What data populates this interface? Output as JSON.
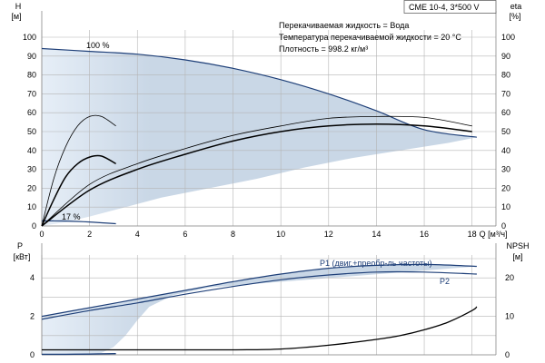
{
  "chart_data": [
    {
      "type": "line",
      "panel": "head-efficiency",
      "title": "CME 10-4, 3*500 V",
      "info_lines": [
        "Перекачиваемая жидкость = Вода",
        "Температура перекачиваемой жидкости = 20 °C",
        "Плотность = 998.2 кг/м³"
      ],
      "y_left_title": "H",
      "y_left_unit": "[м]",
      "y_right_title": "eta",
      "y_right_unit": "[%]",
      "x_axis_label": "Q [м³/ч]",
      "xlim": [
        0,
        19
      ],
      "ylim": [
        0,
        100
      ],
      "y_ticks": [
        0,
        10,
        20,
        30,
        40,
        50,
        60,
        70,
        80,
        90,
        100
      ],
      "x_ticks": [
        0,
        2,
        4,
        6,
        8,
        10,
        12,
        14,
        16,
        18
      ],
      "grid": true,
      "operating_area": {
        "upper": {
          "x": [
            0,
            2,
            4,
            6,
            8,
            10,
            12,
            14,
            16,
            18.2
          ],
          "y": [
            94,
            92.5,
            91,
            88,
            83.5,
            77.5,
            70,
            61,
            51,
            47
          ]
        },
        "lower": {
          "x": [
            0,
            1,
            2,
            3.5,
            5,
            7,
            9,
            11,
            13,
            15,
            17,
            18.2
          ],
          "y": [
            0,
            2,
            5,
            10,
            15,
            20,
            25,
            31,
            36,
            40,
            44,
            47
          ]
        }
      },
      "series": [
        {
          "name": "100 %",
          "kind": "head",
          "x": [
            0,
            2,
            4,
            6,
            8,
            10,
            12,
            14,
            16,
            18.2
          ],
          "y": [
            94,
            92.5,
            91,
            88,
            83.5,
            77.5,
            70,
            61,
            51,
            47
          ]
        },
        {
          "name": "17 %",
          "kind": "head",
          "x": [
            0,
            0.5,
            1,
            1.5,
            2,
            2.5,
            3.1
          ],
          "y": [
            2.7,
            2.7,
            2.6,
            2.4,
            2.1,
            1.7,
            1.2
          ]
        },
        {
          "name": "",
          "kind": "efficiency-pump",
          "x": [
            0,
            2,
            4,
            6,
            8,
            10,
            12,
            14,
            16,
            18
          ],
          "y": [
            0,
            22,
            33,
            41,
            48,
            53,
            57,
            58,
            57.5,
            53
          ]
        },
        {
          "name": "",
          "kind": "efficiency-total",
          "x": [
            0,
            2,
            4,
            6,
            8,
            10,
            12,
            14,
            16,
            18
          ],
          "y": [
            0,
            19,
            30,
            38,
            45,
            50,
            53,
            54,
            53,
            50
          ]
        },
        {
          "name": "",
          "kind": "efficiency-pump-low",
          "x": [
            0,
            0.5,
            1,
            1.5,
            2,
            2.5,
            3.1
          ],
          "y": [
            0,
            25,
            42,
            53,
            58,
            58,
            53
          ]
        },
        {
          "name": "",
          "kind": "efficiency-total-low",
          "x": [
            0,
            0.5,
            1,
            1.5,
            2,
            2.5,
            3.1
          ],
          "y": [
            0,
            14,
            26,
            33,
            36.5,
            37,
            33
          ]
        }
      ]
    },
    {
      "type": "line",
      "panel": "power-npsh",
      "y_left_title": "P",
      "y_left_unit": "[кВт]",
      "y_right_title": "NPSH",
      "y_right_unit": "[м]",
      "xlim": [
        0,
        19
      ],
      "ylim": [
        0,
        5
      ],
      "y_left_ticks": [
        0,
        2,
        4
      ],
      "y_right_ticks": [
        0,
        10,
        20
      ],
      "y_right_lim": [
        0,
        25
      ],
      "grid": true,
      "operating_area": {
        "upper": {
          "x": [
            0,
            2,
            4,
            6,
            8,
            10,
            12,
            14,
            16,
            18.2
          ],
          "y": [
            2.0,
            2.45,
            2.9,
            3.35,
            3.8,
            4.2,
            4.5,
            4.65,
            4.7,
            4.6
          ]
        },
        "lower": {
          "x": [
            0,
            2.0,
            2.5,
            3,
            3.5,
            4,
            4.5,
            5.5,
            7,
            18.2
          ],
          "y": [
            0,
            0,
            0.1,
            0.4,
            1.0,
            1.8,
            2.5,
            3.1,
            3.5,
            4.6
          ]
        }
      },
      "series": [
        {
          "name": "P1 (двиг.+преобр-ль частоты)",
          "kind": "power",
          "x": [
            0,
            2,
            4,
            6,
            8,
            10,
            12,
            14,
            16,
            18.2
          ],
          "y": [
            2.0,
            2.45,
            2.9,
            3.35,
            3.8,
            4.2,
            4.5,
            4.65,
            4.7,
            4.6
          ]
        },
        {
          "name": "P2",
          "kind": "power",
          "x": [
            0,
            2,
            4,
            6,
            8,
            10,
            12,
            14,
            16,
            18.2
          ],
          "y": [
            1.85,
            2.3,
            2.7,
            3.15,
            3.55,
            3.9,
            4.15,
            4.3,
            4.3,
            4.2
          ]
        },
        {
          "name": "",
          "kind": "power-low",
          "x": [
            0,
            1,
            2,
            3.1
          ],
          "y": [
            0.03,
            0.03,
            0.04,
            0.06
          ]
        },
        {
          "name": "",
          "kind": "npsh",
          "npsh_units": true,
          "x": [
            0,
            4,
            8,
            10,
            12,
            14,
            15,
            16,
            17,
            18,
            18.2
          ],
          "y": [
            1.3,
            1.3,
            1.3,
            1.5,
            2.5,
            4.0,
            5.0,
            6.5,
            8.5,
            11.5,
            12.5
          ]
        }
      ]
    }
  ]
}
